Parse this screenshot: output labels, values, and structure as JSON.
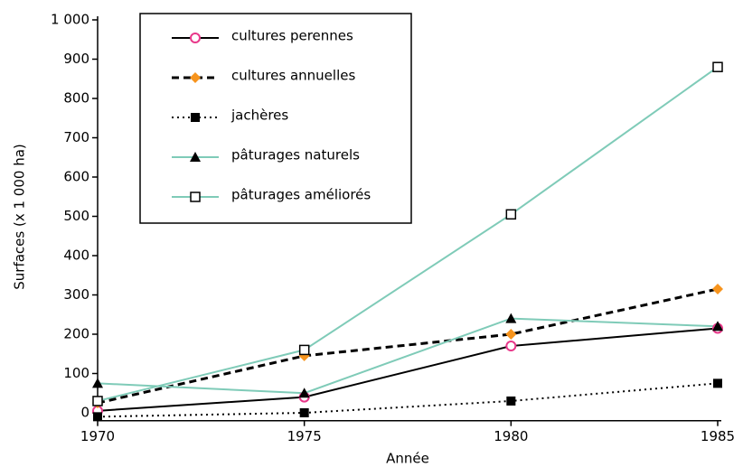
{
  "chart_data": {
    "type": "line",
    "x_label": "Année",
    "y_label": "Surfaces (x 1 000 ha)",
    "x": [
      1970,
      1975,
      1980,
      1985
    ],
    "xlim": [
      1970,
      1985
    ],
    "xticks": [
      1970,
      1975,
      1980,
      1985
    ],
    "ylim": [
      -20,
      1000
    ],
    "yticks": [
      0,
      100,
      200,
      300,
      400,
      500,
      600,
      700,
      800,
      900,
      {
        "value": 1000,
        "label": "1 000"
      }
    ],
    "legend": "upper left",
    "series": [
      {
        "name": "cultures perennes",
        "color": "#000000",
        "marker_color": "#e8388a",
        "marker": "open-circle",
        "line_style": "solid",
        "values": [
          5,
          40,
          170,
          215
        ]
      },
      {
        "name": "cultures annuelles",
        "color": "#000000",
        "marker_color": "#f7941d",
        "marker": "diamond",
        "line_style": "dashed",
        "values": [
          25,
          145,
          200,
          315
        ]
      },
      {
        "name": "jachères",
        "color": "#000000",
        "marker_color": "#000000",
        "marker": "square",
        "line_style": "dotted",
        "values": [
          -10,
          0,
          30,
          75
        ]
      },
      {
        "name": "pâturages naturels",
        "color": "#7fcbb8",
        "marker_color": "#000000",
        "marker": "triangle",
        "line_style": "solid",
        "values": [
          75,
          50,
          240,
          220
        ]
      },
      {
        "name": "pâturages améliorés",
        "color": "#7fcbb8",
        "marker_color": "#000000",
        "marker": "open-square",
        "line_style": "solid",
        "values": [
          30,
          160,
          505,
          880
        ]
      }
    ]
  }
}
